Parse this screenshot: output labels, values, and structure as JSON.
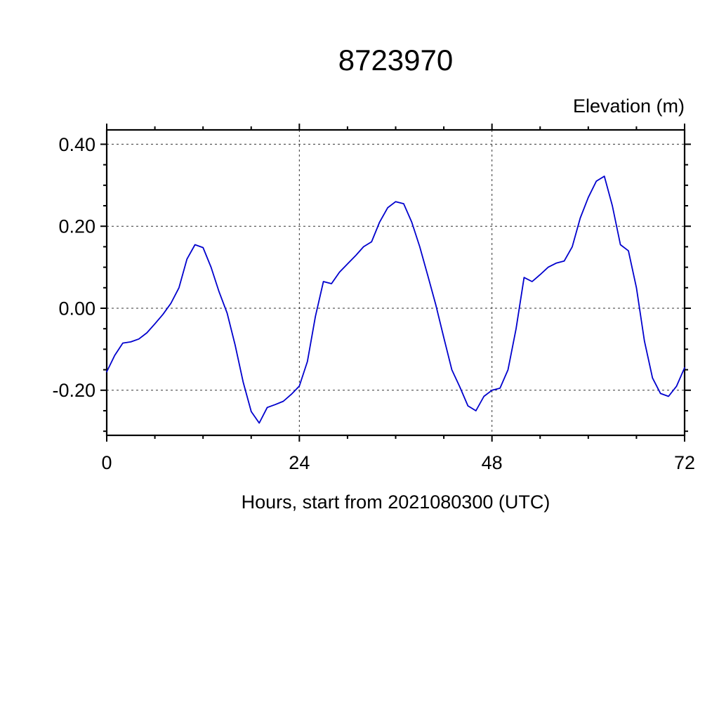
{
  "chart_data": {
    "type": "line",
    "title": "8723970",
    "ylabel": "Elevation (m)",
    "xlabel": "Hours, start from 2021080300 (UTC)",
    "line_color": "#0000cd",
    "grid": true,
    "grid_style": "dashed",
    "legend": "none",
    "xlim": [
      0,
      72
    ],
    "ylim": [
      -0.31,
      0.435
    ],
    "x_ticks": [
      0,
      24,
      48,
      72
    ],
    "x_tick_labels": [
      "0",
      "24",
      "48",
      "72"
    ],
    "y_ticks": [
      0.4,
      0.2,
      0.0,
      -0.2
    ],
    "y_tick_labels": [
      "0.40",
      "0.20",
      "0.00",
      "-0.20"
    ],
    "x_minor_step": 6,
    "y_minor_step": 0.05,
    "x": [
      0,
      1,
      2,
      3,
      4,
      5,
      6,
      7,
      8,
      9,
      10,
      11,
      12,
      13,
      14,
      15,
      16,
      17,
      18,
      19,
      20,
      21,
      22,
      23,
      24,
      25,
      26,
      27,
      28,
      29,
      30,
      31,
      32,
      33,
      34,
      35,
      36,
      37,
      38,
      39,
      40,
      41,
      42,
      43,
      44,
      45,
      46,
      47,
      48,
      49,
      50,
      51,
      52,
      53,
      54,
      55,
      56,
      57,
      58,
      59,
      60,
      61,
      62,
      63,
      64,
      65,
      66,
      67,
      68,
      69,
      70,
      71,
      72
    ],
    "y": [
      -0.155,
      -0.115,
      -0.085,
      -0.082,
      -0.075,
      -0.06,
      -0.038,
      -0.015,
      0.012,
      0.05,
      0.12,
      0.155,
      0.148,
      0.1,
      0.04,
      -0.012,
      -0.09,
      -0.18,
      -0.252,
      -0.28,
      -0.242,
      -0.235,
      -0.227,
      -0.21,
      -0.19,
      -0.13,
      -0.02,
      0.065,
      0.06,
      0.088,
      0.108,
      0.128,
      0.15,
      0.162,
      0.21,
      0.245,
      0.26,
      0.255,
      0.21,
      0.15,
      0.08,
      0.008,
      -0.072,
      -0.15,
      -0.192,
      -0.238,
      -0.25,
      -0.215,
      -0.2,
      -0.195,
      -0.15,
      -0.05,
      0.075,
      0.065,
      0.082,
      0.1,
      0.11,
      0.115,
      0.15,
      0.22,
      0.27,
      0.31,
      0.322,
      0.25,
      0.155,
      0.14,
      0.05,
      -0.08,
      -0.17,
      -0.208,
      -0.215,
      -0.19,
      -0.145
    ]
  }
}
